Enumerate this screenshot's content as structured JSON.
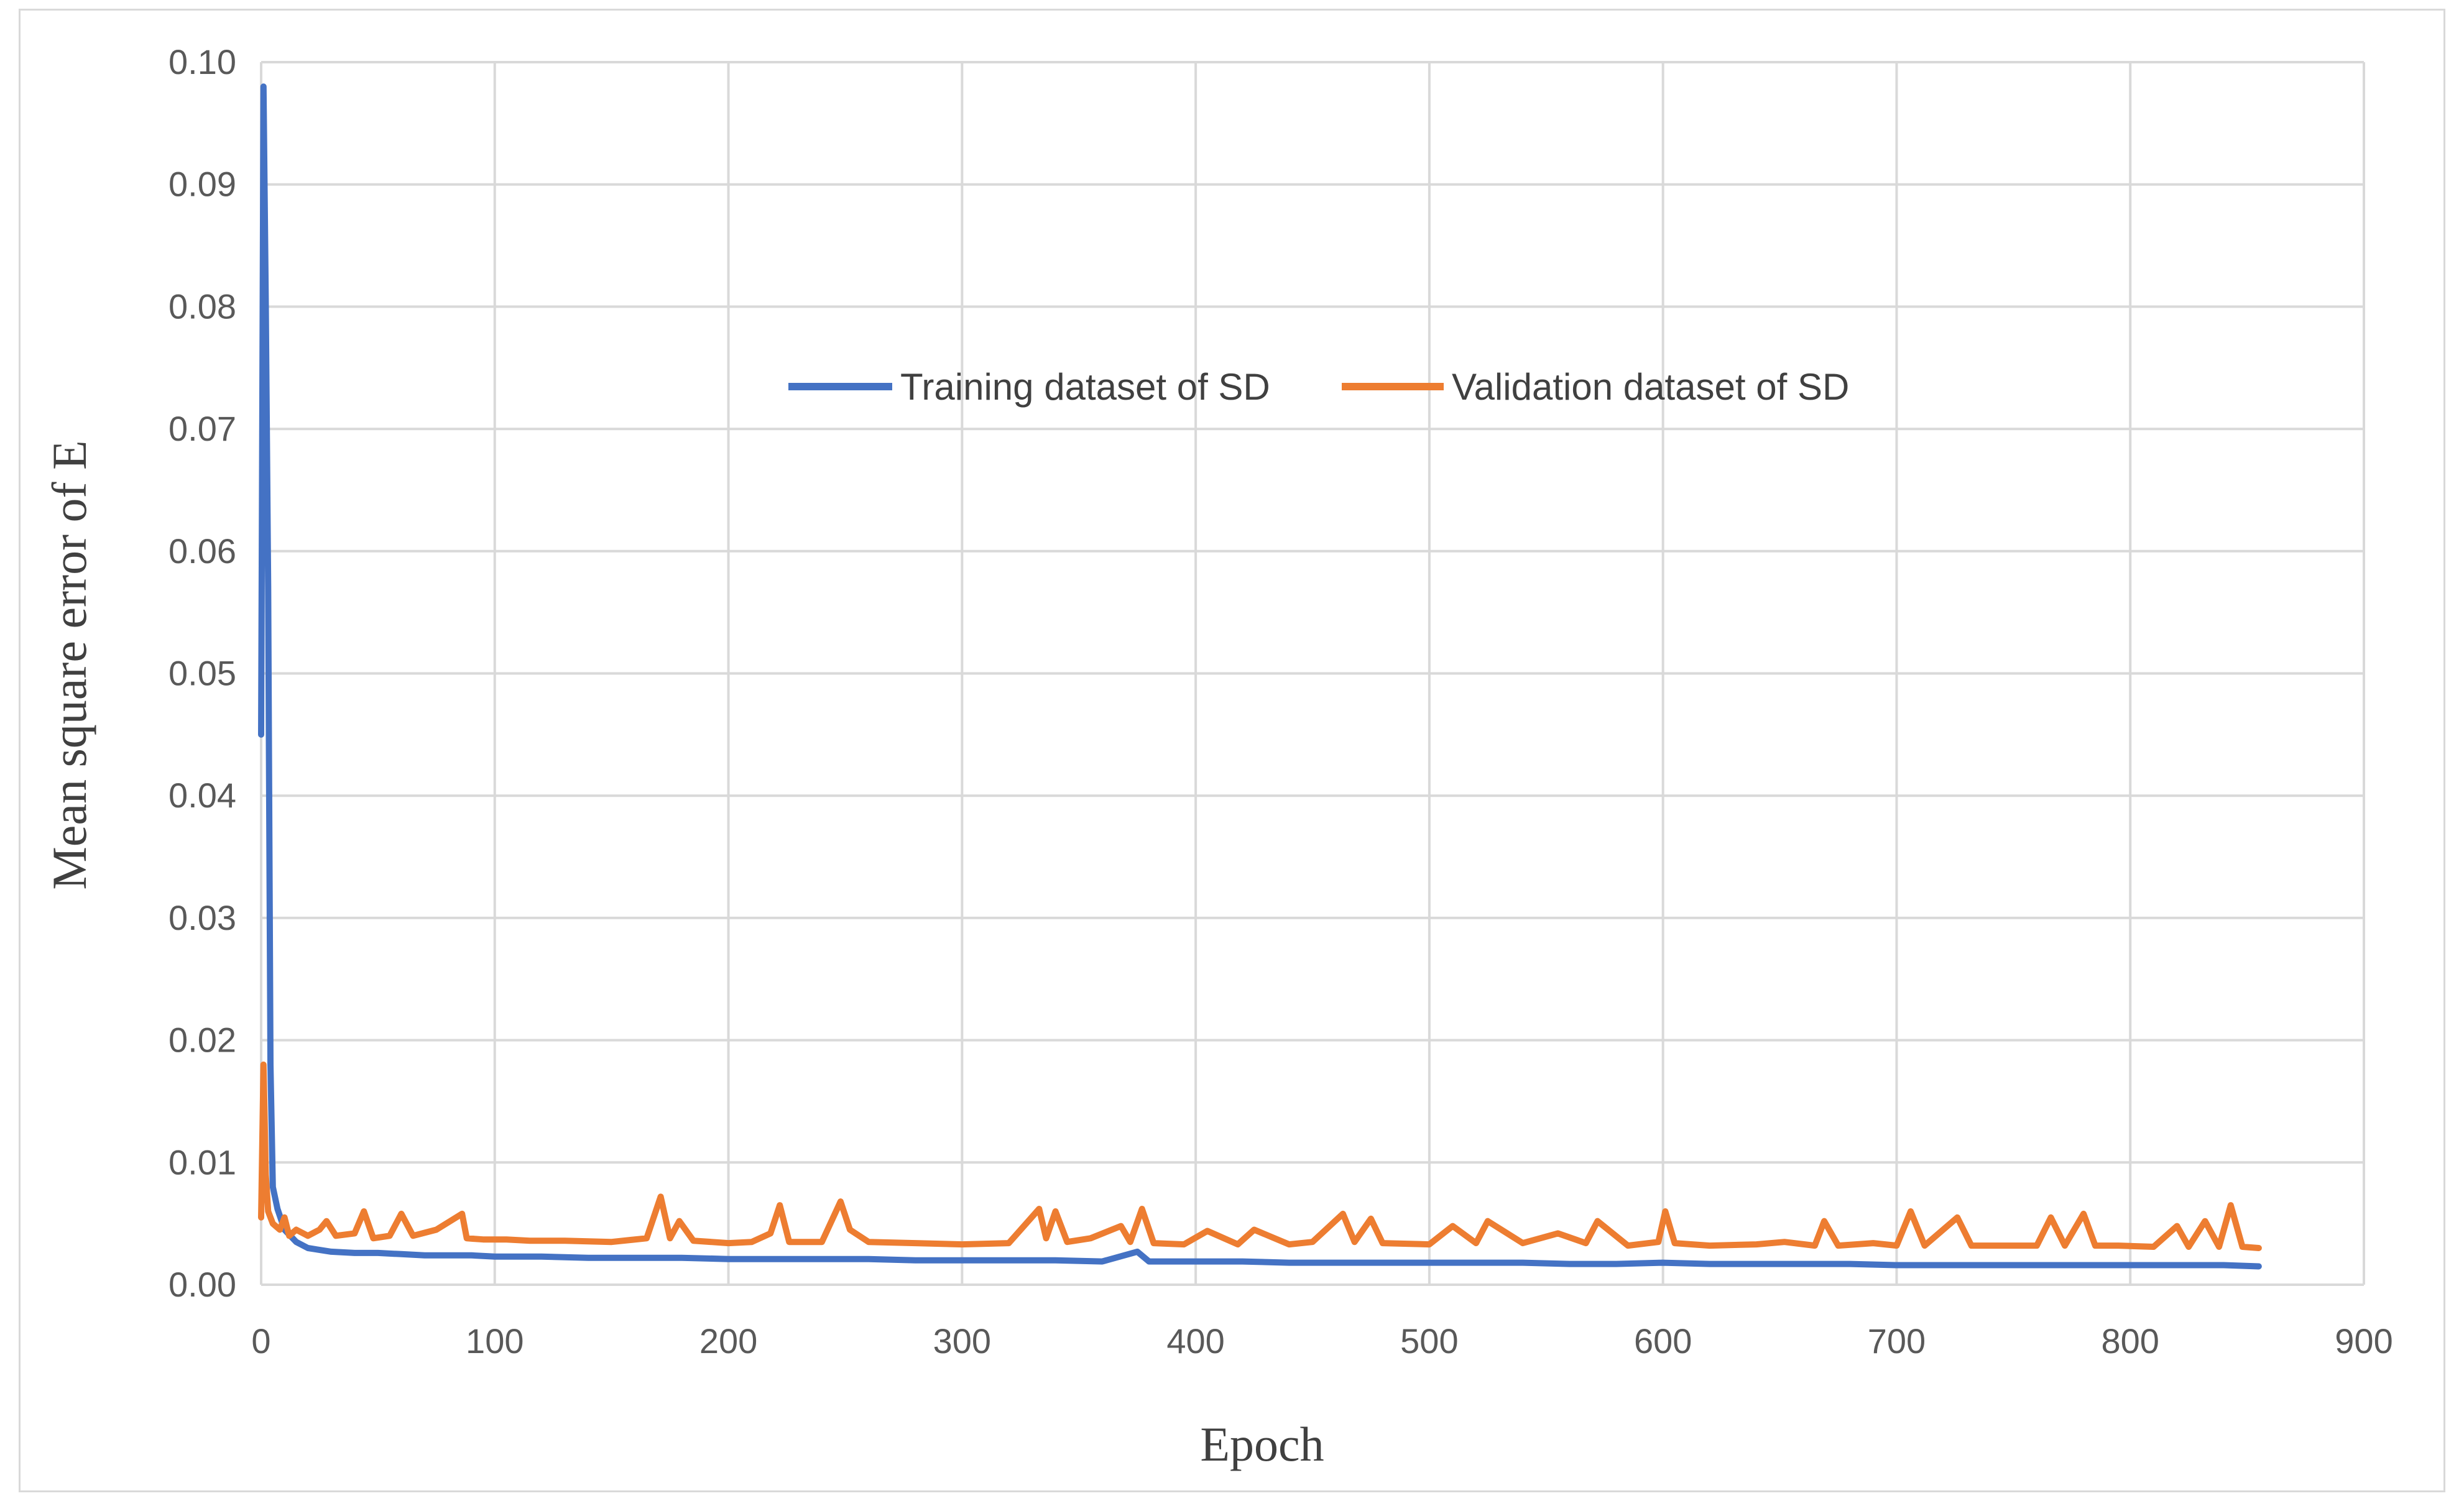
{
  "chart_data": {
    "type": "line",
    "title": "",
    "xlabel": "Epoch",
    "ylabel": "Mean square error of E",
    "xlim": [
      0,
      900
    ],
    "ylim": [
      0,
      0.1
    ],
    "x_ticks": [
      "0",
      "100",
      "200",
      "300",
      "400",
      "500",
      "600",
      "700",
      "800",
      "900"
    ],
    "y_ticks": [
      "0.00",
      "0.01",
      "0.02",
      "0.03",
      "0.04",
      "0.05",
      "0.06",
      "0.07",
      "0.08",
      "0.09",
      "0.10"
    ],
    "grid": true,
    "legend_position": "center-top inside plot",
    "series": [
      {
        "name": "Training dataset of SD",
        "color": "#4472C4",
        "x": [
          0,
          1,
          2,
          3,
          4,
          5,
          7,
          10,
          15,
          20,
          30,
          40,
          50,
          60,
          70,
          80,
          90,
          100,
          120,
          140,
          160,
          180,
          200,
          220,
          240,
          260,
          280,
          300,
          320,
          340,
          360,
          375,
          380,
          400,
          420,
          440,
          460,
          480,
          500,
          520,
          540,
          560,
          580,
          600,
          620,
          640,
          660,
          680,
          700,
          720,
          740,
          760,
          780,
          800,
          820,
          840,
          855
        ],
        "values": [
          0.045,
          0.098,
          0.08,
          0.057,
          0.018,
          0.008,
          0.0062,
          0.0045,
          0.0035,
          0.003,
          0.0027,
          0.0026,
          0.0026,
          0.0025,
          0.0024,
          0.0024,
          0.0024,
          0.0023,
          0.0023,
          0.0022,
          0.0022,
          0.0022,
          0.0021,
          0.0021,
          0.0021,
          0.0021,
          0.002,
          0.002,
          0.002,
          0.002,
          0.0019,
          0.0027,
          0.0019,
          0.0019,
          0.0019,
          0.0018,
          0.0018,
          0.0018,
          0.0018,
          0.0018,
          0.0018,
          0.0017,
          0.0017,
          0.0018,
          0.0017,
          0.0017,
          0.0017,
          0.0017,
          0.0016,
          0.0016,
          0.0016,
          0.0016,
          0.0016,
          0.0016,
          0.0016,
          0.0016,
          0.0015
        ]
      },
      {
        "name": "Validation dataset of SD",
        "color": "#ED7D31",
        "x": [
          0,
          1,
          2,
          3,
          5,
          8,
          10,
          12,
          15,
          20,
          25,
          28,
          32,
          40,
          44,
          48,
          55,
          60,
          65,
          75,
          86,
          88,
          95,
          105,
          115,
          130,
          150,
          165,
          171,
          175,
          179,
          185,
          200,
          210,
          218,
          222,
          226,
          240,
          248,
          252,
          260,
          280,
          300,
          320,
          333,
          336,
          340,
          345,
          355,
          368,
          372,
          377,
          382,
          395,
          405,
          418,
          425,
          440,
          450,
          463,
          468,
          475,
          480,
          500,
          510,
          520,
          525,
          540,
          555,
          567,
          572,
          585,
          598,
          601,
          605,
          620,
          640,
          652,
          665,
          669,
          675,
          690,
          700,
          706,
          712,
          726,
          732,
          745,
          760,
          766,
          772,
          780,
          785,
          795,
          810,
          820,
          825,
          832,
          838,
          843,
          848,
          855
        ],
        "values": [
          0.0055,
          0.018,
          0.009,
          0.006,
          0.005,
          0.0045,
          0.0055,
          0.004,
          0.0045,
          0.004,
          0.0045,
          0.0052,
          0.004,
          0.0042,
          0.006,
          0.0038,
          0.004,
          0.0058,
          0.004,
          0.0045,
          0.0058,
          0.0038,
          0.0037,
          0.0037,
          0.0036,
          0.0036,
          0.0035,
          0.0038,
          0.0072,
          0.0038,
          0.0052,
          0.0036,
          0.0034,
          0.0035,
          0.0042,
          0.0065,
          0.0035,
          0.0035,
          0.0068,
          0.0045,
          0.0035,
          0.0034,
          0.0033,
          0.0034,
          0.0062,
          0.0038,
          0.006,
          0.0035,
          0.0038,
          0.0048,
          0.0035,
          0.0062,
          0.0034,
          0.0033,
          0.0044,
          0.0033,
          0.0045,
          0.0033,
          0.0035,
          0.0058,
          0.0035,
          0.0054,
          0.0034,
          0.0033,
          0.0048,
          0.0034,
          0.0052,
          0.0034,
          0.0042,
          0.0034,
          0.0052,
          0.0032,
          0.0035,
          0.006,
          0.0034,
          0.0032,
          0.0033,
          0.0035,
          0.0032,
          0.0052,
          0.0032,
          0.0034,
          0.0032,
          0.006,
          0.0032,
          0.0055,
          0.0032,
          0.0032,
          0.0032,
          0.0055,
          0.0032,
          0.0058,
          0.0032,
          0.0032,
          0.0031,
          0.0048,
          0.0031,
          0.0052,
          0.0031,
          0.0065,
          0.0031,
          0.003
        ]
      }
    ]
  }
}
